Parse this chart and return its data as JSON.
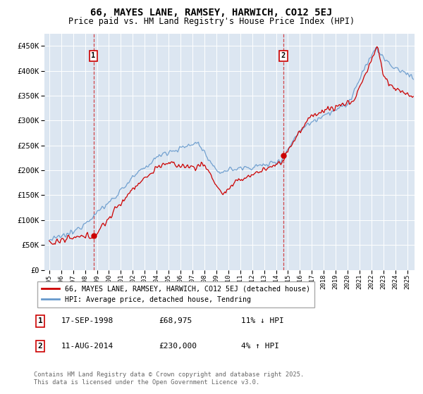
{
  "title": "66, MAYES LANE, RAMSEY, HARWICH, CO12 5EJ",
  "subtitle": "Price paid vs. HM Land Registry's House Price Index (HPI)",
  "ylim": [
    0,
    475000
  ],
  "yticks": [
    0,
    50000,
    100000,
    150000,
    200000,
    250000,
    300000,
    350000,
    400000,
    450000
  ],
  "xlim_start": 1994.6,
  "xlim_end": 2025.6,
  "background_color": "#dce6f1",
  "grid_color": "#ffffff",
  "line_color_red": "#cc0000",
  "line_color_blue": "#6699cc",
  "sale1_year": 1998.71,
  "sale1_price": 68975,
  "sale2_year": 2014.61,
  "sale2_price": 230000,
  "marker_y": 430000,
  "legend_line1": "66, MAYES LANE, RAMSEY, HARWICH, CO12 5EJ (detached house)",
  "legend_line2": "HPI: Average price, detached house, Tendring",
  "footnote": "Contains HM Land Registry data © Crown copyright and database right 2025.\nThis data is licensed under the Open Government Licence v3.0.",
  "table_rows": [
    {
      "label": "1",
      "date": "17-SEP-1998",
      "price": "£68,975",
      "hpi": "11% ↓ HPI"
    },
    {
      "label": "2",
      "date": "11-AUG-2014",
      "price": "£230,000",
      "hpi": "4% ↑ HPI"
    }
  ]
}
